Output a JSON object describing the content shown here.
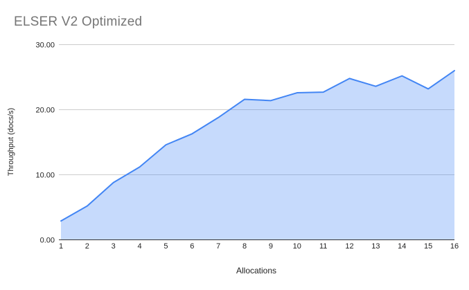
{
  "colors": {
    "line": "#4285f4",
    "fill": "rgba(66,133,244,0.30)",
    "grid": "#cccccc",
    "axis": "#333333",
    "title_text": "#757575",
    "tick_text": "#222222"
  },
  "chart_data": {
    "type": "area",
    "title": "ELSER V2 Optimized",
    "xlabel": "Allocations",
    "ylabel": "Throughput (docs/s)",
    "categories": [
      "1",
      "2",
      "3",
      "4",
      "5",
      "6",
      "7",
      "8",
      "9",
      "10",
      "11",
      "12",
      "13",
      "14",
      "15",
      "16"
    ],
    "values": [
      2.9,
      5.2,
      8.8,
      11.2,
      14.6,
      16.3,
      18.8,
      21.6,
      21.4,
      22.6,
      22.7,
      24.8,
      23.6,
      25.2,
      23.2,
      26.0
    ],
    "ylim": [
      0,
      30
    ],
    "y_ticks": [
      0,
      10,
      20,
      30
    ],
    "y_tick_labels": [
      "0.00",
      "10.00",
      "20.00",
      "30.00"
    ],
    "grid": true,
    "legend": "none"
  }
}
